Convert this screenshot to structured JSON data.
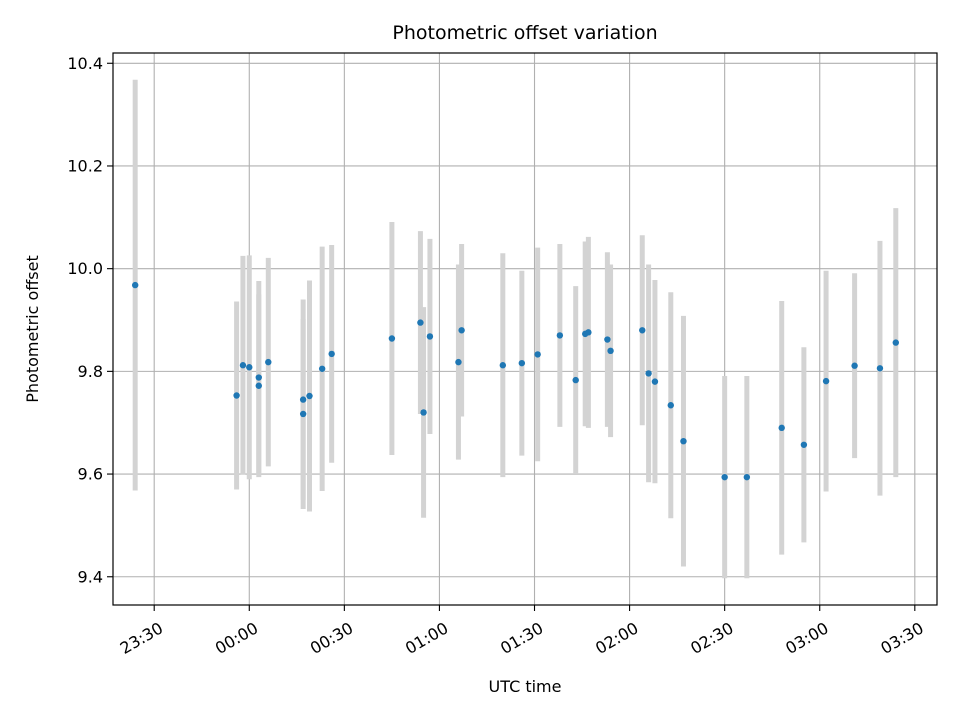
{
  "chart_data": {
    "type": "scatter",
    "title": "Photometric offset variation",
    "xlabel": "UTC time",
    "ylabel": "Photometric offset",
    "xlim": [
      "23:17",
      "03:37"
    ],
    "ylim": [
      9.345,
      10.42
    ],
    "x_ticks": [
      "23:30",
      "00:00",
      "00:30",
      "01:00",
      "01:30",
      "02:00",
      "02:30",
      "03:00",
      "03:30"
    ],
    "y_ticks": [
      9.4,
      9.6,
      9.8,
      10.0,
      10.2,
      10.4
    ],
    "y_tick_labels": [
      "9.4",
      "9.6",
      "9.8",
      "10.0",
      "10.2",
      "10.4"
    ],
    "grid": true,
    "point_color": "#1f77b4",
    "errorbar_color": "#d3d3d3",
    "points": [
      {
        "x": "23:24",
        "y": 9.968,
        "err": 0.4
      },
      {
        "x": "23:56",
        "y": 9.753,
        "err": 0.183
      },
      {
        "x": "23:58",
        "y": 9.812,
        "err": 0.213
      },
      {
        "x": "00:00",
        "y": 9.808,
        "err": 0.218
      },
      {
        "x": "00:03",
        "y": 9.788,
        "err": 0.188
      },
      {
        "x": "00:03",
        "y": 9.772,
        "err": 0.178
      },
      {
        "x": "00:06",
        "y": 9.818,
        "err": 0.203
      },
      {
        "x": "00:17",
        "y": 9.745,
        "err": 0.195
      },
      {
        "x": "00:17",
        "y": 9.717,
        "err": 0.185
      },
      {
        "x": "00:19",
        "y": 9.752,
        "err": 0.225
      },
      {
        "x": "00:23",
        "y": 9.805,
        "err": 0.238
      },
      {
        "x": "00:26",
        "y": 9.834,
        "err": 0.212
      },
      {
        "x": "00:45",
        "y": 9.864,
        "err": 0.227
      },
      {
        "x": "00:54",
        "y": 9.895,
        "err": 0.178
      },
      {
        "x": "00:55",
        "y": 9.72,
        "err": 0.205
      },
      {
        "x": "00:57",
        "y": 9.868,
        "err": 0.19
      },
      {
        "x": "01:06",
        "y": 9.818,
        "err": 0.19
      },
      {
        "x": "01:07",
        "y": 9.88,
        "err": 0.168
      },
      {
        "x": "01:20",
        "y": 9.812,
        "err": 0.218
      },
      {
        "x": "01:26",
        "y": 9.816,
        "err": 0.18
      },
      {
        "x": "01:31",
        "y": 9.833,
        "err": 0.208
      },
      {
        "x": "01:38",
        "y": 9.87,
        "err": 0.178
      },
      {
        "x": "01:43",
        "y": 9.783,
        "err": 0.183
      },
      {
        "x": "01:46",
        "y": 9.873,
        "err": 0.18
      },
      {
        "x": "01:47",
        "y": 9.876,
        "err": 0.186
      },
      {
        "x": "01:53",
        "y": 9.862,
        "err": 0.17
      },
      {
        "x": "01:54",
        "y": 9.84,
        "err": 0.168
      },
      {
        "x": "02:04",
        "y": 9.88,
        "err": 0.185
      },
      {
        "x": "02:06",
        "y": 9.796,
        "err": 0.212
      },
      {
        "x": "02:08",
        "y": 9.78,
        "err": 0.198
      },
      {
        "x": "02:13",
        "y": 9.734,
        "err": 0.22
      },
      {
        "x": "02:17",
        "y": 9.664,
        "err": 0.244
      },
      {
        "x": "02:30",
        "y": 9.594,
        "err": 0.197
      },
      {
        "x": "02:37",
        "y": 9.594,
        "err": 0.197
      },
      {
        "x": "02:48",
        "y": 9.69,
        "err": 0.247
      },
      {
        "x": "02:55",
        "y": 9.657,
        "err": 0.19
      },
      {
        "x": "03:02",
        "y": 9.781,
        "err": 0.215
      },
      {
        "x": "03:11",
        "y": 9.811,
        "err": 0.18
      },
      {
        "x": "03:19",
        "y": 9.806,
        "err": 0.248
      },
      {
        "x": "03:24",
        "y": 9.856,
        "err": 0.262
      }
    ]
  }
}
